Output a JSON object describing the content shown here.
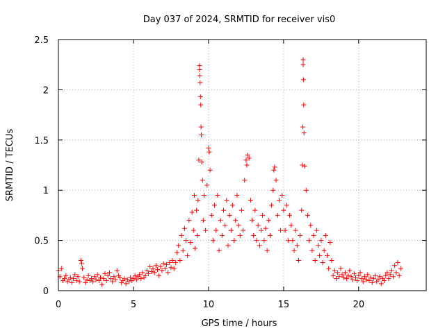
{
  "chart_data": {
    "type": "scatter",
    "title": "Day 037 of 2024, SRMTID for receiver vis0",
    "xlabel": "GPS time / hours",
    "ylabel": "SRMTID / TECUs",
    "xlim": [
      0,
      24.5
    ],
    "ylim": [
      0,
      2.5
    ],
    "xticks": [
      0,
      5,
      10,
      15,
      20
    ],
    "yticks": [
      0,
      0.5,
      1,
      1.5,
      2,
      2.5
    ],
    "xtick_labels": [
      "0",
      "5",
      "10",
      "15",
      "20"
    ],
    "ytick_labels": [
      "0",
      "0.5",
      "1",
      "1.5",
      "2",
      "2.5"
    ],
    "grid": true,
    "marker": "+",
    "color": "#ff0000",
    "series": [
      {
        "name": "vis0",
        "points": [
          [
            0.0,
            0.2
          ],
          [
            0.1,
            0.14
          ],
          [
            0.2,
            0.22
          ],
          [
            0.3,
            0.1
          ],
          [
            0.4,
            0.12
          ],
          [
            0.5,
            0.15
          ],
          [
            0.6,
            0.09
          ],
          [
            0.7,
            0.11
          ],
          [
            0.8,
            0.13
          ],
          [
            0.9,
            0.08
          ],
          [
            1.0,
            0.12
          ],
          [
            1.1,
            0.16
          ],
          [
            1.2,
            0.1
          ],
          [
            1.3,
            0.14
          ],
          [
            1.4,
            0.09
          ],
          [
            1.5,
            0.3
          ],
          [
            1.55,
            0.27
          ],
          [
            1.6,
            0.22
          ],
          [
            1.7,
            0.13
          ],
          [
            1.8,
            0.08
          ],
          [
            1.9,
            0.11
          ],
          [
            2.0,
            0.15
          ],
          [
            2.1,
            0.1
          ],
          [
            2.2,
            0.12
          ],
          [
            2.3,
            0.09
          ],
          [
            2.4,
            0.14
          ],
          [
            2.5,
            0.11
          ],
          [
            2.6,
            0.16
          ],
          [
            2.7,
            0.1
          ],
          [
            2.8,
            0.13
          ],
          [
            2.9,
            0.06
          ],
          [
            3.0,
            0.12
          ],
          [
            3.1,
            0.17
          ],
          [
            3.2,
            0.1
          ],
          [
            3.3,
            0.15
          ],
          [
            3.4,
            0.18
          ],
          [
            3.5,
            0.12
          ],
          [
            3.6,
            0.09
          ],
          [
            3.7,
            0.14
          ],
          [
            3.8,
            0.11
          ],
          [
            3.9,
            0.2
          ],
          [
            4.0,
            0.15
          ],
          [
            4.1,
            0.13
          ],
          [
            4.2,
            0.08
          ],
          [
            4.3,
            0.1
          ],
          [
            4.4,
            0.12
          ],
          [
            4.5,
            0.07
          ],
          [
            4.6,
            0.11
          ],
          [
            4.7,
            0.09
          ],
          [
            4.8,
            0.13
          ],
          [
            4.9,
            0.1
          ],
          [
            5.0,
            0.12
          ],
          [
            5.1,
            0.15
          ],
          [
            5.2,
            0.11
          ],
          [
            5.3,
            0.14
          ],
          [
            5.4,
            0.16
          ],
          [
            5.5,
            0.12
          ],
          [
            5.6,
            0.18
          ],
          [
            5.7,
            0.13
          ],
          [
            5.8,
            0.15
          ],
          [
            5.9,
            0.2
          ],
          [
            6.0,
            0.17
          ],
          [
            6.1,
            0.24
          ],
          [
            6.2,
            0.19
          ],
          [
            6.3,
            0.22
          ],
          [
            6.4,
            0.18
          ],
          [
            6.5,
            0.25
          ],
          [
            6.6,
            0.21
          ],
          [
            6.7,
            0.15
          ],
          [
            6.8,
            0.24
          ],
          [
            6.9,
            0.2
          ],
          [
            7.0,
            0.27
          ],
          [
            7.1,
            0.22
          ],
          [
            7.2,
            0.26
          ],
          [
            7.3,
            0.18
          ],
          [
            7.4,
            0.28
          ],
          [
            7.5,
            0.23
          ],
          [
            7.6,
            0.3
          ],
          [
            7.7,
            0.22
          ],
          [
            7.8,
            0.28
          ],
          [
            7.9,
            0.38
          ],
          [
            8.0,
            0.45
          ],
          [
            8.1,
            0.3
          ],
          [
            8.2,
            0.55
          ],
          [
            8.3,
            0.4
          ],
          [
            8.4,
            0.62
          ],
          [
            8.5,
            0.5
          ],
          [
            8.6,
            0.35
          ],
          [
            8.7,
            0.7
          ],
          [
            8.8,
            0.48
          ],
          [
            8.9,
            0.78
          ],
          [
            9.0,
            0.6
          ],
          [
            9.05,
            0.95
          ],
          [
            9.1,
            0.42
          ],
          [
            9.2,
            0.8
          ],
          [
            9.25,
            0.55
          ],
          [
            9.3,
            0.9
          ],
          [
            9.35,
            1.3
          ],
          [
            9.4,
            2.24
          ],
          [
            9.4,
            2.2
          ],
          [
            9.42,
            2.14
          ],
          [
            9.44,
            2.07
          ],
          [
            9.46,
            1.93
          ],
          [
            9.48,
            1.85
          ],
          [
            9.5,
            1.63
          ],
          [
            9.52,
            1.55
          ],
          [
            9.55,
            1.28
          ],
          [
            9.6,
            1.1
          ],
          [
            9.65,
            0.7
          ],
          [
            9.7,
            0.95
          ],
          [
            9.8,
            0.6
          ],
          [
            9.9,
            1.05
          ],
          [
            10.0,
            1.42
          ],
          [
            10.05,
            1.38
          ],
          [
            10.1,
            1.2
          ],
          [
            10.2,
            0.75
          ],
          [
            10.3,
            0.5
          ],
          [
            10.4,
            0.85
          ],
          [
            10.5,
            0.6
          ],
          [
            10.6,
            0.95
          ],
          [
            10.7,
            0.4
          ],
          [
            10.8,
            0.7
          ],
          [
            10.9,
            0.55
          ],
          [
            11.0,
            0.8
          ],
          [
            11.1,
            0.65
          ],
          [
            11.2,
            0.9
          ],
          [
            11.3,
            0.45
          ],
          [
            11.4,
            0.75
          ],
          [
            11.5,
            0.6
          ],
          [
            11.6,
            0.85
          ],
          [
            11.7,
            0.5
          ],
          [
            11.8,
            0.7
          ],
          [
            11.9,
            0.95
          ],
          [
            12.0,
            0.65
          ],
          [
            12.1,
            0.55
          ],
          [
            12.2,
            0.8
          ],
          [
            12.3,
            0.6
          ],
          [
            12.4,
            1.1
          ],
          [
            12.5,
            1.3
          ],
          [
            12.55,
            1.25
          ],
          [
            12.6,
            1.35
          ],
          [
            12.7,
            1.32
          ],
          [
            12.8,
            0.9
          ],
          [
            12.9,
            0.7
          ],
          [
            13.0,
            0.55
          ],
          [
            13.1,
            0.8
          ],
          [
            13.2,
            0.5
          ],
          [
            13.3,
            0.65
          ],
          [
            13.4,
            0.45
          ],
          [
            13.5,
            0.6
          ],
          [
            13.6,
            0.75
          ],
          [
            13.7,
            0.5
          ],
          [
            13.8,
            0.62
          ],
          [
            13.9,
            0.4
          ],
          [
            14.0,
            0.7
          ],
          [
            14.1,
            0.55
          ],
          [
            14.2,
            0.85
          ],
          [
            14.3,
            1.0
          ],
          [
            14.35,
            1.2
          ],
          [
            14.4,
            1.23
          ],
          [
            14.5,
            1.1
          ],
          [
            14.6,
            0.75
          ],
          [
            14.7,
            0.9
          ],
          [
            14.8,
            0.6
          ],
          [
            14.9,
            0.95
          ],
          [
            15.0,
            0.8
          ],
          [
            15.1,
            0.6
          ],
          [
            15.2,
            0.85
          ],
          [
            15.3,
            0.5
          ],
          [
            15.4,
            0.75
          ],
          [
            15.5,
            0.65
          ],
          [
            15.6,
            0.5
          ],
          [
            15.7,
            0.4
          ],
          [
            15.8,
            0.6
          ],
          [
            15.9,
            0.45
          ],
          [
            16.0,
            0.3
          ],
          [
            16.1,
            0.55
          ],
          [
            16.2,
            0.8
          ],
          [
            16.25,
            1.25
          ],
          [
            16.28,
            1.63
          ],
          [
            16.3,
            2.3
          ],
          [
            16.3,
            2.25
          ],
          [
            16.32,
            2.1
          ],
          [
            16.34,
            1.85
          ],
          [
            16.36,
            1.57
          ],
          [
            16.4,
            1.24
          ],
          [
            16.5,
            1.0
          ],
          [
            16.6,
            0.75
          ],
          [
            16.7,
            0.5
          ],
          [
            16.8,
            0.65
          ],
          [
            16.9,
            0.4
          ],
          [
            17.0,
            0.55
          ],
          [
            17.1,
            0.3
          ],
          [
            17.2,
            0.6
          ],
          [
            17.3,
            0.45
          ],
          [
            17.4,
            0.35
          ],
          [
            17.5,
            0.5
          ],
          [
            17.6,
            0.28
          ],
          [
            17.7,
            0.4
          ],
          [
            17.8,
            0.55
          ],
          [
            17.9,
            0.35
          ],
          [
            18.0,
            0.22
          ],
          [
            18.1,
            0.48
          ],
          [
            18.2,
            0.3
          ],
          [
            18.3,
            0.15
          ],
          [
            18.4,
            0.2
          ],
          [
            18.5,
            0.12
          ],
          [
            18.6,
            0.18
          ],
          [
            18.7,
            0.14
          ],
          [
            18.8,
            0.22
          ],
          [
            18.9,
            0.16
          ],
          [
            19.0,
            0.13
          ],
          [
            19.1,
            0.18
          ],
          [
            19.2,
            0.12
          ],
          [
            19.3,
            0.15
          ],
          [
            19.4,
            0.2
          ],
          [
            19.5,
            0.14
          ],
          [
            19.6,
            0.11
          ],
          [
            19.7,
            0.17
          ],
          [
            19.8,
            0.13
          ],
          [
            19.9,
            0.1
          ],
          [
            20.0,
            0.15
          ],
          [
            20.1,
            0.18
          ],
          [
            20.2,
            0.12
          ],
          [
            20.3,
            0.09
          ],
          [
            20.4,
            0.14
          ],
          [
            20.5,
            0.11
          ],
          [
            20.6,
            0.16
          ],
          [
            20.7,
            0.1
          ],
          [
            20.8,
            0.13
          ],
          [
            20.9,
            0.08
          ],
          [
            21.0,
            0.12
          ],
          [
            21.1,
            0.15
          ],
          [
            21.2,
            0.09
          ],
          [
            21.3,
            0.11
          ],
          [
            21.4,
            0.14
          ],
          [
            21.5,
            0.07
          ],
          [
            21.6,
            0.12
          ],
          [
            21.7,
            0.1
          ],
          [
            21.8,
            0.15
          ],
          [
            21.9,
            0.18
          ],
          [
            22.0,
            0.12
          ],
          [
            22.1,
            0.16
          ],
          [
            22.2,
            0.2
          ],
          [
            22.3,
            0.14
          ],
          [
            22.4,
            0.25
          ],
          [
            22.5,
            0.18
          ],
          [
            22.6,
            0.28
          ],
          [
            22.7,
            0.15
          ],
          [
            22.8,
            0.22
          ]
        ]
      }
    ]
  }
}
